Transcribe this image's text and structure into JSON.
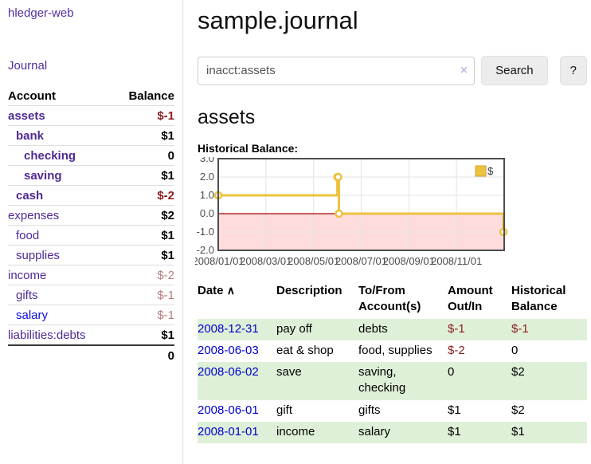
{
  "sidebar": {
    "app_title": "hledger-web",
    "journal_label": "Journal",
    "accounts": {
      "header_account": "Account",
      "header_balance": "Balance",
      "rows": [
        {
          "name": "assets",
          "level": 0,
          "bold": true,
          "balance": "$-1",
          "neg": "strong"
        },
        {
          "name": "bank",
          "level": 1,
          "bold": true,
          "balance": "$1",
          "neg": "none"
        },
        {
          "name": "checking",
          "level": 2,
          "bold": true,
          "balance": "0",
          "neg": "none"
        },
        {
          "name": "saving",
          "level": 2,
          "bold": true,
          "balance": "$1",
          "neg": "none"
        },
        {
          "name": "cash",
          "level": 1,
          "bold": true,
          "balance": "$-2",
          "neg": "strong"
        },
        {
          "name": "expenses",
          "level": 0,
          "bold": false,
          "balance": "$2",
          "neg": "none"
        },
        {
          "name": "food",
          "level": 1,
          "bold": false,
          "balance": "$1",
          "neg": "none"
        },
        {
          "name": "supplies",
          "level": 1,
          "bold": false,
          "balance": "$1",
          "neg": "none"
        },
        {
          "name": "income",
          "level": 0,
          "bold": false,
          "balance": "$-2",
          "neg": "soft"
        },
        {
          "name": "gifts",
          "level": 1,
          "bold": false,
          "balance": "$-1",
          "neg": "soft"
        },
        {
          "name": "salary",
          "level": 1,
          "bold": false,
          "balance": "$-1",
          "neg": "soft",
          "link": "blue"
        },
        {
          "name": "liabilities:debts",
          "level": 0,
          "bold": false,
          "balance": "$1",
          "neg": "none"
        }
      ],
      "total": "0"
    }
  },
  "main": {
    "title": "sample.journal",
    "search": {
      "value": "inacct:assets",
      "clear_icon": "×",
      "button": "Search",
      "help": "?"
    },
    "heading": "assets",
    "chart_label": "Historical Balance:",
    "chart_data": {
      "type": "line",
      "step": true,
      "title": "Historical Balance",
      "series": [
        {
          "name": "$",
          "color": "#edc240",
          "points": [
            [
              "2008-01-01",
              1
            ],
            [
              "2008-06-01",
              2
            ],
            [
              "2008-06-02",
              2
            ],
            [
              "2008-06-03",
              0
            ],
            [
              "2008-12-31",
              -1
            ]
          ]
        }
      ],
      "x_ticks": [
        "2008/01/01",
        "2008/03/01",
        "2008/05/01",
        "2008/07/01",
        "2008/09/01",
        "2008/11/01"
      ],
      "y_ticks": [
        "3.0",
        "2.0",
        "1.0",
        "0.0",
        "-1.0",
        "-2.0"
      ],
      "ylim": [
        -2,
        3
      ],
      "grid": true,
      "legend": {
        "position": "top-right",
        "label": "$"
      },
      "negative_region_color": "#ffdcdc",
      "zero_line_color": "#aa0000",
      "plot_border_color": "#4d4d4d"
    },
    "register": {
      "headers": [
        "Date",
        "Description",
        "To/From Account(s)",
        "Amount Out/In",
        "Historical Balance"
      ],
      "sort_icon": "∧",
      "rows": [
        {
          "date": "2008-12-31",
          "desc": "pay off",
          "accounts": "debts",
          "amount": "$-1",
          "amount_neg": true,
          "balance": "$-1",
          "balance_neg": true
        },
        {
          "date": "2008-06-03",
          "desc": "eat & shop",
          "accounts": "food, supplies",
          "amount": "$-2",
          "amount_neg": true,
          "balance": "0",
          "balance_neg": false
        },
        {
          "date": "2008-06-02",
          "desc": "save",
          "accounts": "saving, checking",
          "amount": "0",
          "amount_neg": false,
          "balance": "$2",
          "balance_neg": false
        },
        {
          "date": "2008-06-01",
          "desc": "gift",
          "accounts": "gifts",
          "amount": "$1",
          "amount_neg": false,
          "balance": "$2",
          "balance_neg": false
        },
        {
          "date": "2008-01-01",
          "desc": "income",
          "accounts": "salary",
          "amount": "$1",
          "amount_neg": false,
          "balance": "$1",
          "balance_neg": false
        }
      ]
    }
  },
  "colors": {
    "link_purple": "#4f2a93",
    "link_blue": "#0000cc",
    "negative_strong": "#8b1d1d",
    "negative_soft": "#b97c7c",
    "row_green": "#dff0d8",
    "chart_line": "#edc240"
  }
}
